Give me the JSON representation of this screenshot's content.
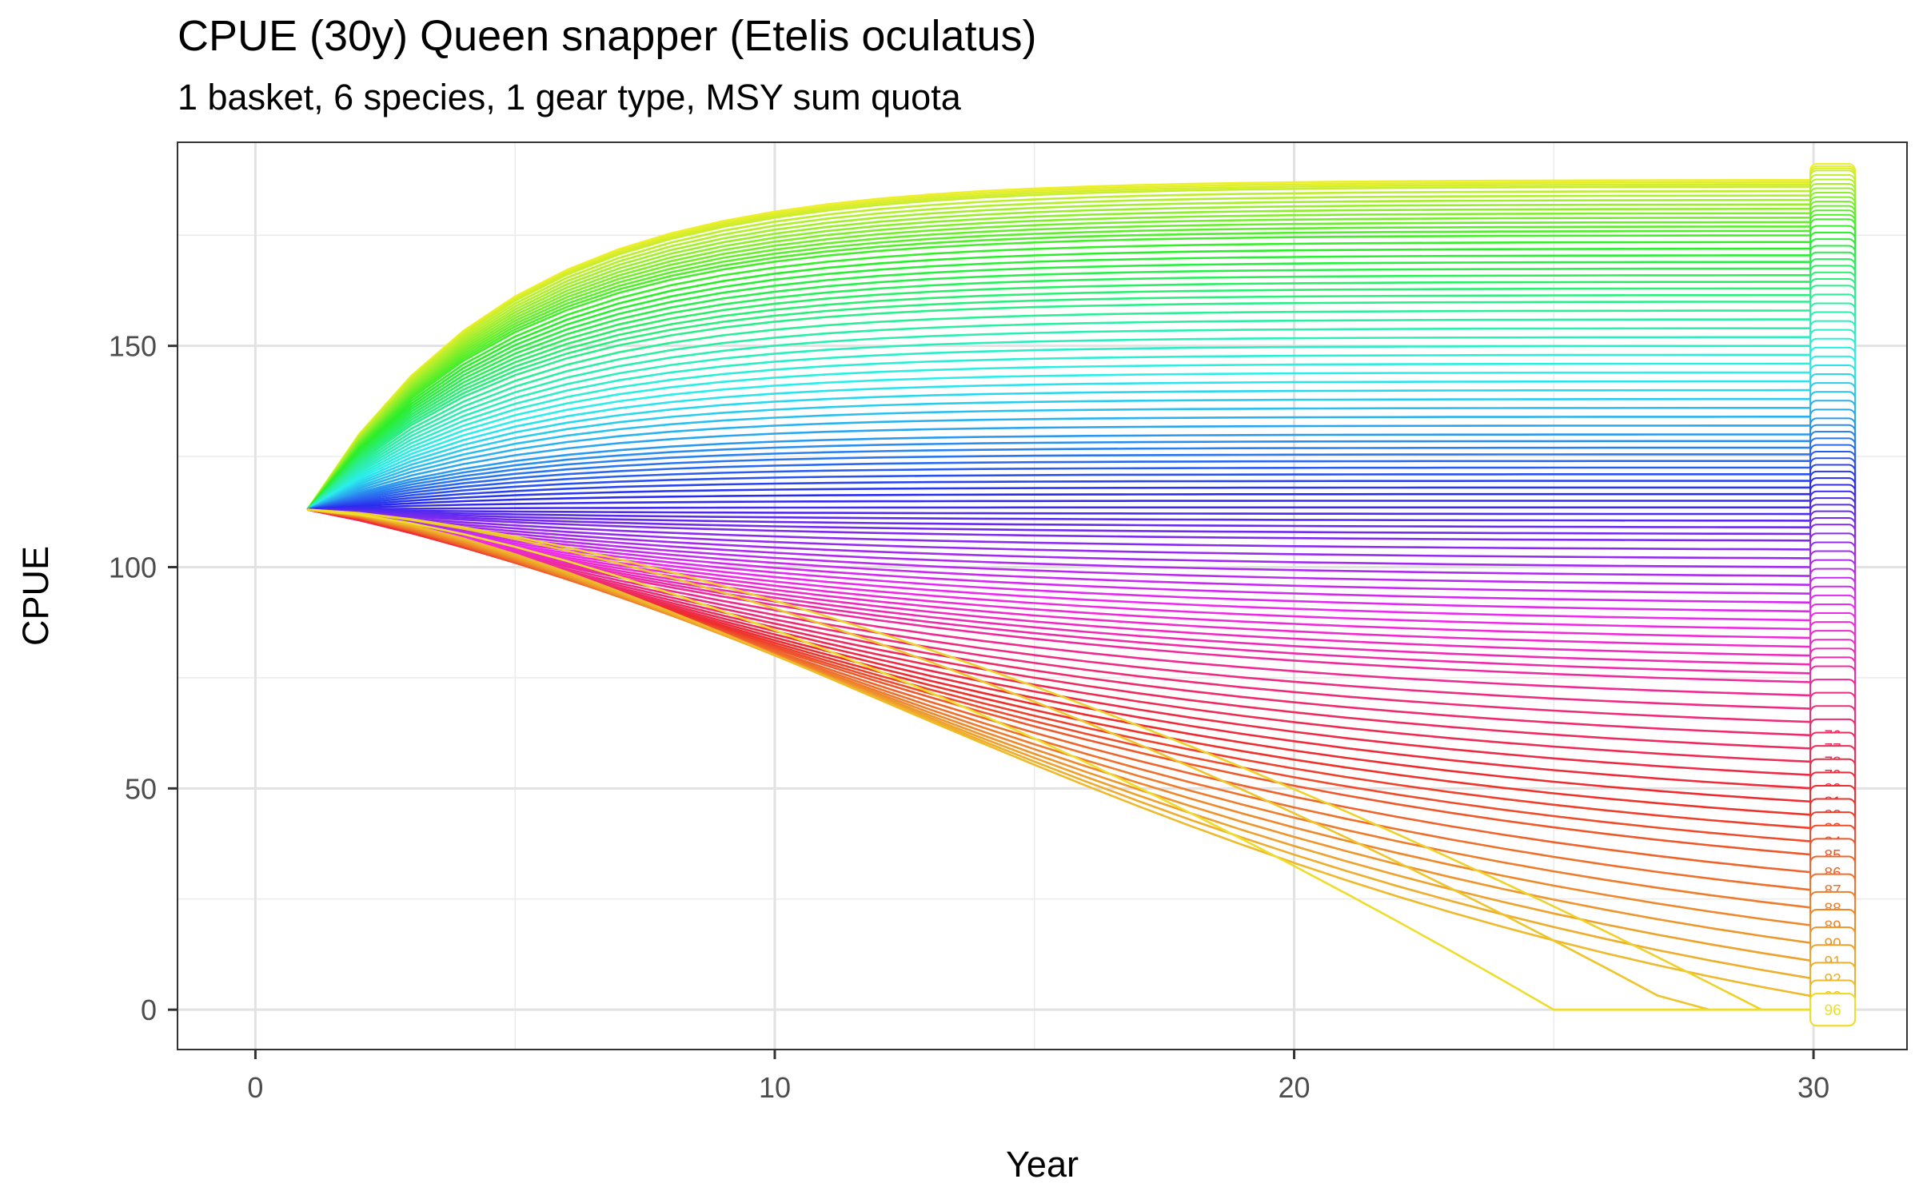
{
  "chart_data": {
    "type": "line",
    "title": "CPUE (30y) Queen snapper (Etelis oculatus)",
    "subtitle": "1 basket, 6 species, 1 gear type, MSY sum quota",
    "xlabel": "Year",
    "ylabel": "CPUE",
    "xlim": [
      -1.5,
      31.8
    ],
    "ylim": [
      -9,
      196
    ],
    "x_ticks": [
      0,
      10,
      20,
      30
    ],
    "y_ticks": [
      0,
      50,
      100,
      150
    ],
    "grid": true,
    "legend": "none",
    "x": [
      1,
      2,
      3,
      4,
      5,
      6,
      7,
      8,
      9,
      10,
      11,
      12,
      13,
      14,
      15,
      16,
      17,
      18,
      19,
      20,
      21,
      22,
      23,
      24,
      25,
      26,
      27,
      28,
      29,
      30
    ],
    "series_count": 96,
    "series_start_value": 113,
    "series_final_values": [
      187.5,
      187,
      186.5,
      186,
      185,
      184,
      183,
      182,
      181,
      180,
      179,
      178,
      177,
      176,
      175,
      173.5,
      172,
      170.5,
      169,
      167.5,
      166,
      164.5,
      163,
      161.5,
      160,
      158,
      156,
      154,
      152,
      150,
      148,
      146,
      144,
      142,
      140,
      138,
      136,
      134,
      132,
      130,
      128.5,
      127,
      125.5,
      124,
      122.5,
      121,
      119.5,
      118,
      116.5,
      115,
      113.5,
      112,
      110.5,
      109,
      107.5,
      106,
      104,
      102,
      100,
      98,
      96,
      94,
      92,
      90,
      88,
      86,
      84,
      82,
      80,
      78,
      76,
      74,
      71,
      68,
      65,
      62,
      59,
      56,
      53,
      50,
      47,
      44,
      41,
      38,
      35,
      31,
      27,
      23,
      19,
      15,
      11,
      7,
      3,
      0,
      0,
      0
    ],
    "series_labels_visible": [
      "76",
      "77",
      "78",
      "79",
      "80",
      "81",
      "82",
      "83",
      "84",
      "85",
      "86",
      "87",
      "88",
      "89",
      "90",
      "91",
      "92",
      "93",
      "94",
      "95",
      "96"
    ]
  }
}
